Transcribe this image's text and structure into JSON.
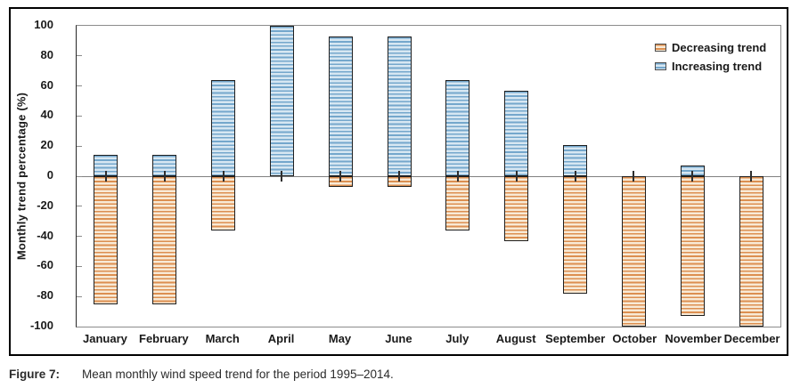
{
  "figure": {
    "caption_label": "Figure 7:",
    "caption_text": "Mean monthly wind speed trend for the period 1995–2014."
  },
  "legend": {
    "items": [
      {
        "label": "Decreasing trend",
        "color_fill": "#f8ead6",
        "color_stripe": "#dc8f50"
      },
      {
        "label": "Increasing trend",
        "color_fill": "#d7e7f2",
        "color_stripe": "#74a7cc"
      }
    ]
  },
  "chart_data": {
    "type": "bar",
    "title": "",
    "xlabel": "",
    "ylabel": "Monthly trend percentage (%)",
    "ylim": [
      -100,
      100
    ],
    "y_ticks": [
      100,
      80,
      60,
      40,
      20,
      0,
      -20,
      -40,
      -60,
      -80,
      -100
    ],
    "grid": "zero-line-only",
    "legend_position": "top-right",
    "error_ticks_at_zero": true,
    "categories": [
      "January",
      "February",
      "March",
      "April",
      "May",
      "June",
      "July",
      "August",
      "September",
      "October",
      "November",
      "December"
    ],
    "series": [
      {
        "name": "Decreasing trend",
        "fill": "#f8ead6",
        "stripe": "#dc8f50",
        "border": "#1f1f1f",
        "values": [
          -85,
          -85,
          -36,
          0,
          -7,
          -7,
          -36,
          -43,
          -78,
          -100,
          -93,
          -100
        ]
      },
      {
        "name": "Increasing trend",
        "fill": "#d7e7f2",
        "stripe": "#74a7cc",
        "border": "#1f1f1f",
        "values": [
          14,
          14,
          64,
          100,
          93,
          93,
          64,
          57,
          21,
          0,
          7,
          0
        ]
      }
    ]
  }
}
